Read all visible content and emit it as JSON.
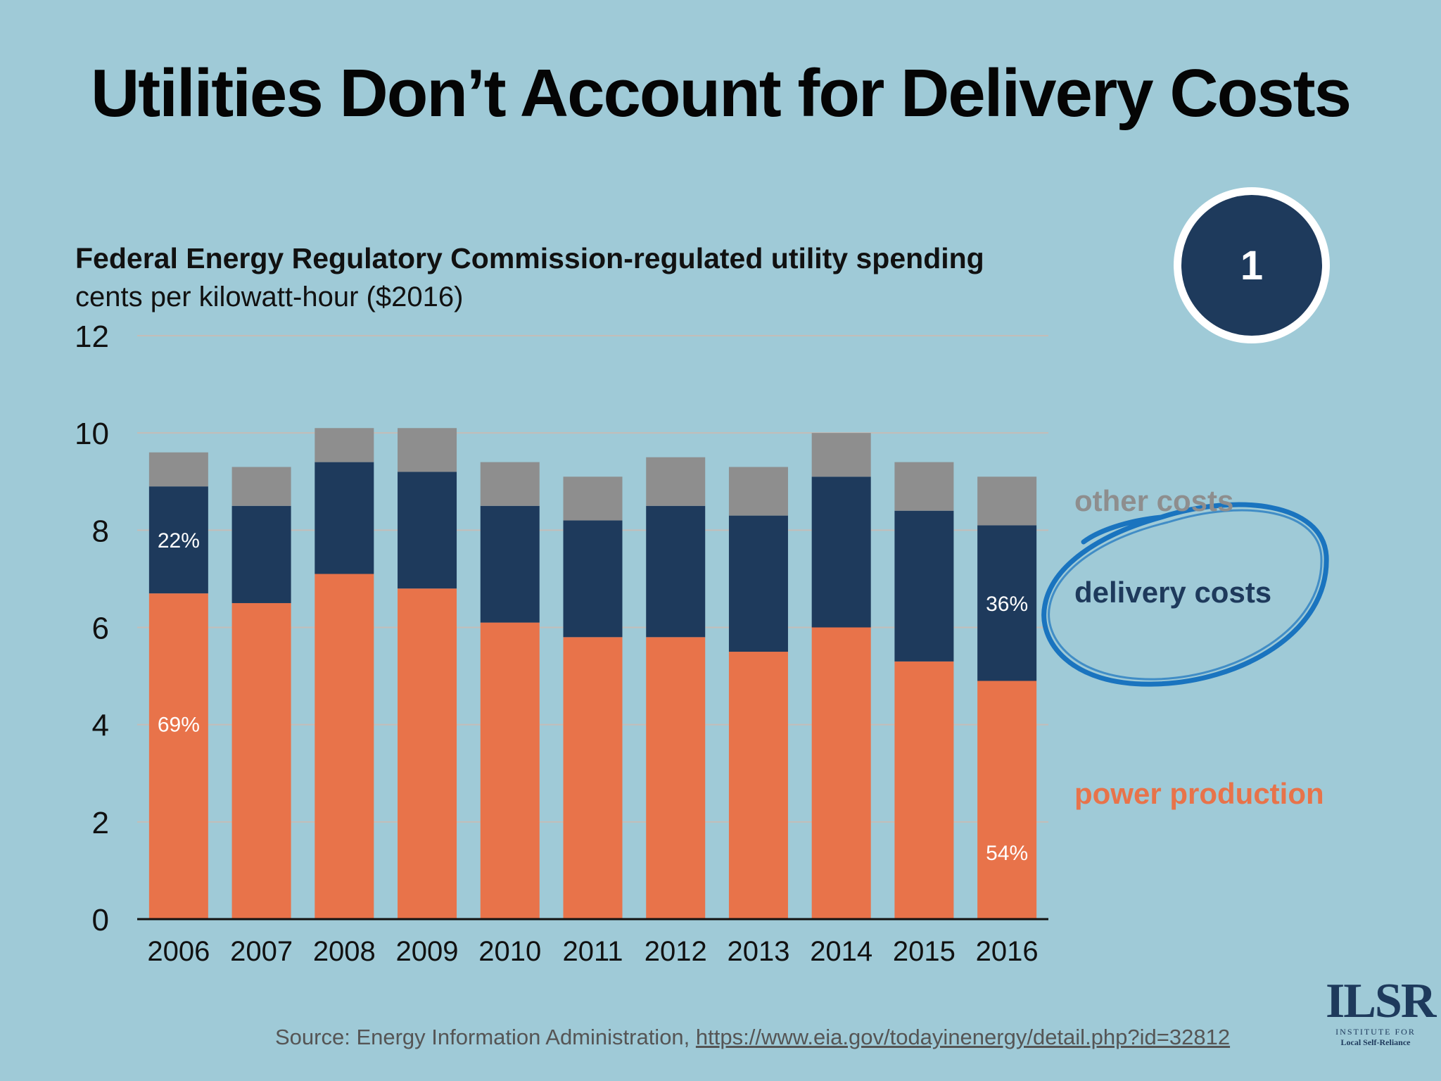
{
  "title": "Utilities Don’t Account for Delivery Costs",
  "subtitle": "Federal Energy Regulatory Commission-regulated utility spending",
  "units": "cents per kilowatt-hour ($2016)",
  "badge": "1",
  "colors": {
    "background": "#9fcad7",
    "power": "#e8734a",
    "delivery": "#1e3a5c",
    "other": "#8e8e8e",
    "circle": "#1a74bf"
  },
  "chart_data": {
    "type": "bar",
    "stacked": true,
    "categories": [
      "2006",
      "2007",
      "2008",
      "2009",
      "2010",
      "2011",
      "2012",
      "2013",
      "2014",
      "2015",
      "2016"
    ],
    "series": [
      {
        "name": "power production",
        "values": [
          6.7,
          6.5,
          7.1,
          6.8,
          6.1,
          5.8,
          5.8,
          5.5,
          6.0,
          5.3,
          4.9
        ]
      },
      {
        "name": "delivery costs",
        "values": [
          2.2,
          2.0,
          2.3,
          2.4,
          2.4,
          2.4,
          2.7,
          2.8,
          3.1,
          3.1,
          3.2
        ]
      },
      {
        "name": "other costs",
        "values": [
          0.7,
          0.8,
          0.7,
          0.9,
          0.9,
          0.9,
          1.0,
          1.0,
          0.9,
          1.0,
          1.0
        ]
      }
    ],
    "ylim": [
      0,
      12
    ],
    "yticks": [
      "0",
      "2",
      "4",
      "6",
      "8",
      "10",
      "12"
    ],
    "ytick_values": [
      0,
      2,
      4,
      6,
      8,
      10,
      12
    ],
    "grid": true,
    "annotations": [
      {
        "text": "22%",
        "series": "delivery costs",
        "category": "2006"
      },
      {
        "text": "69%",
        "series": "power production",
        "category": "2006"
      },
      {
        "text": "36%",
        "series": "delivery costs",
        "category": "2016"
      },
      {
        "text": "54%",
        "series": "power production",
        "category": "2016"
      }
    ]
  },
  "legend": {
    "other": "other costs",
    "delivery": "delivery costs",
    "power": "power production"
  },
  "source": {
    "prefix": "Source: Energy Information Administration, ",
    "url": "https://www.eia.gov/todayinenergy/detail.php?id=32812"
  },
  "logo": {
    "mark": "ILSR",
    "line1": "INSTITUTE FOR",
    "line2": "Local Self-Reliance"
  }
}
